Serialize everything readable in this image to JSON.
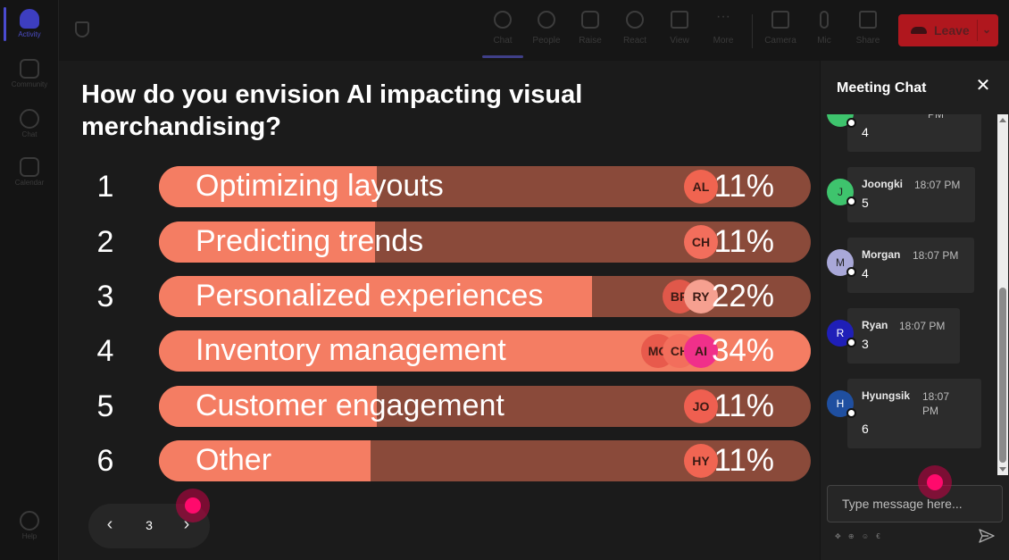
{
  "rail": {
    "items": [
      {
        "label": "Activity",
        "active": true
      },
      {
        "label": "Community",
        "active": false
      },
      {
        "label": "Chat",
        "active": false
      },
      {
        "label": "Calendar",
        "active": false
      }
    ],
    "help": "Help"
  },
  "toolbar": {
    "items": [
      {
        "label": "Chat",
        "icon": "chat-icon",
        "selected": true
      },
      {
        "label": "People",
        "icon": "people-icon",
        "selected": false
      },
      {
        "label": "Raise",
        "icon": "hand-icon",
        "selected": false
      },
      {
        "label": "React",
        "icon": "smile-icon",
        "selected": false
      },
      {
        "label": "View",
        "icon": "grid-icon",
        "selected": false
      },
      {
        "label": "More",
        "icon": "more-icon",
        "selected": false
      }
    ],
    "media": [
      {
        "label": "Camera",
        "icon": "camera-off-icon"
      },
      {
        "label": "Mic",
        "icon": "mic-icon"
      },
      {
        "label": "Share",
        "icon": "share-icon"
      }
    ],
    "leave_label": "Leave"
  },
  "poll": {
    "question": "How do you envision AI impacting visual merchandising?",
    "options": [
      {
        "num": "1",
        "label": "Optimizing layouts",
        "percent": 11,
        "percent_label": "11%",
        "voters": [
          "AL"
        ]
      },
      {
        "num": "2",
        "label": "Predicting trends",
        "percent": 11,
        "percent_label": "11%",
        "voters": [
          "CH"
        ]
      },
      {
        "num": "3",
        "label": "Personalized experiences",
        "percent": 22,
        "percent_label": "22%",
        "voters": [
          "BR",
          "RY"
        ]
      },
      {
        "num": "4",
        "label": "Inventory management",
        "percent": 34,
        "percent_label": "34%",
        "voters": [
          "MO",
          "CH",
          "AI"
        ]
      },
      {
        "num": "5",
        "label": "Customer engagement",
        "percent": 11,
        "percent_label": "11%",
        "voters": [
          "JO"
        ]
      },
      {
        "num": "6",
        "label": "Other",
        "percent": 11,
        "percent_label": "11%",
        "voters": [
          "HY"
        ]
      }
    ],
    "pager": {
      "prev": "‹",
      "page": "3",
      "next": "›"
    }
  },
  "chat": {
    "title": "Meeting Chat",
    "close": "✕",
    "messages": [
      {
        "initial": "",
        "name": "",
        "time": "PM",
        "text": "4",
        "avatar_color": "#3ec46d"
      },
      {
        "initial": "J",
        "name": "Joongki",
        "time": "18:07 PM",
        "text": "5",
        "avatar_color": "#3ec46d"
      },
      {
        "initial": "M",
        "name": "Morgan",
        "time": "18:07 PM",
        "text": "4",
        "avatar_color": "#a9a8d8"
      },
      {
        "initial": "R",
        "name": "Ryan",
        "time": "18:07 PM",
        "text": "3",
        "avatar_color": "#1f1fb8"
      },
      {
        "initial": "H",
        "name": "Hyungsik",
        "time": "18:07 PM",
        "text": "6",
        "avatar_color": "#1f4fa0"
      }
    ],
    "placeholder": "Type message here..."
  },
  "colors": {
    "bar_fill": "#f47d63",
    "bar_track": "#8a4a3a",
    "leave": "#b0171e",
    "pointer": "#ff0a6c"
  }
}
